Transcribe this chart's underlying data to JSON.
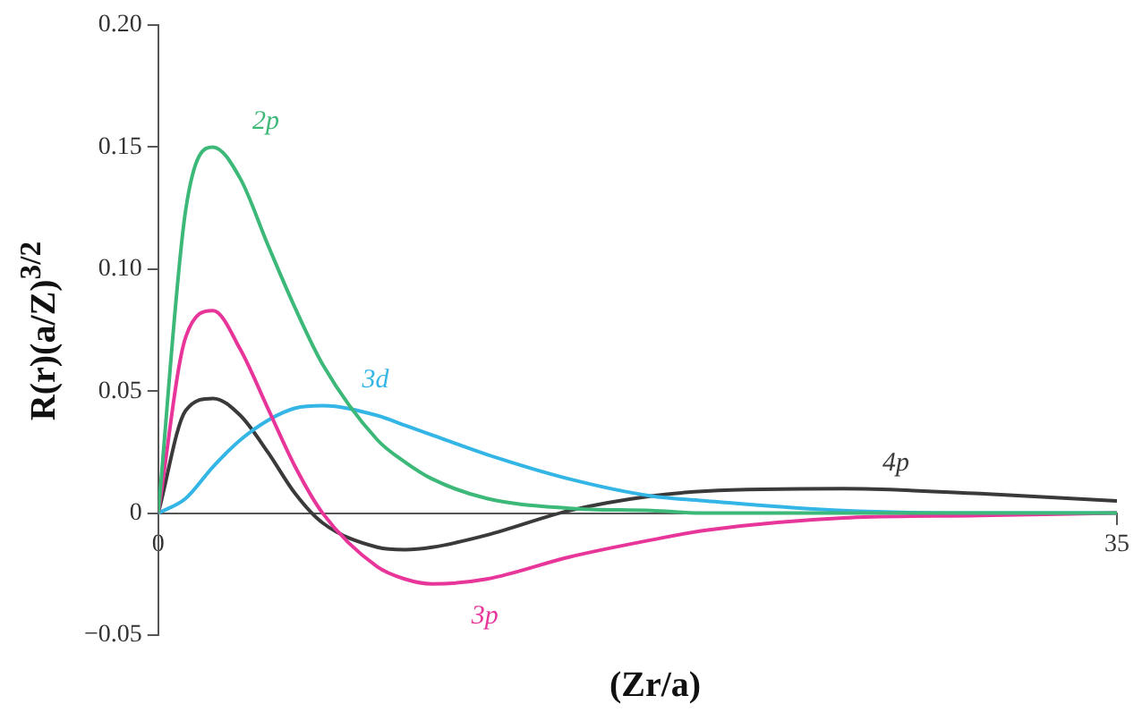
{
  "chart_data": {
    "type": "line",
    "xlabel": "(Zr/a)",
    "ylabel": "R(r)(a/Z)$^{3/2}$",
    "xlim": [
      0,
      35
    ],
    "xticks": [
      0,
      35
    ],
    "ylim": [
      -0.05,
      0.2
    ],
    "yticks": [
      {
        "value": -0.05,
        "label": "−0.05"
      },
      {
        "value": 0,
        "label": "0"
      },
      {
        "value": 0.05,
        "label": "0.05"
      },
      {
        "value": 0.1,
        "label": "0.10"
      },
      {
        "value": 0.15,
        "label": "0.15"
      },
      {
        "value": 0.2,
        "label": "0.20"
      }
    ],
    "x": [
      0,
      1,
      2,
      3,
      4,
      5,
      6,
      8,
      9,
      10,
      12,
      15,
      18,
      20,
      25,
      30,
      35
    ],
    "series": [
      {
        "name": "2p",
        "color": "#3cb878",
        "values": [
          0,
          0.124,
          0.15,
          0.137,
          0.11,
          0.084,
          0.061,
          0.03,
          0.021,
          0.014,
          0.006,
          0.002,
          0.001,
          0,
          0,
          0,
          0
        ]
      },
      {
        "name": "3p",
        "color": "#e8359a",
        "values": [
          0,
          0.072,
          0.083,
          0.067,
          0.043,
          0.019,
          0,
          -0.022,
          -0.027,
          -0.029,
          -0.027,
          -0.018,
          -0.011,
          -0.007,
          -0.002,
          -0.001,
          0
        ]
      },
      {
        "name": "3d",
        "color": "#33b5e5",
        "values": [
          0,
          0.006,
          0.019,
          0.03,
          0.038,
          0.043,
          0.044,
          0.04,
          0.036,
          0.032,
          0.024,
          0.014,
          0.007,
          0.005,
          0.001,
          0,
          0
        ]
      },
      {
        "name": "4p",
        "color": "#3a3a3a",
        "values": [
          0,
          0.042,
          0.047,
          0.04,
          0.025,
          0.008,
          -0.004,
          -0.014,
          -0.015,
          -0.014,
          -0.009,
          0.001,
          0.007,
          0.009,
          0.01,
          0.008,
          0.005
        ]
      }
    ],
    "legend": false,
    "grid": false,
    "marker": "none",
    "line_style": "solid"
  }
}
